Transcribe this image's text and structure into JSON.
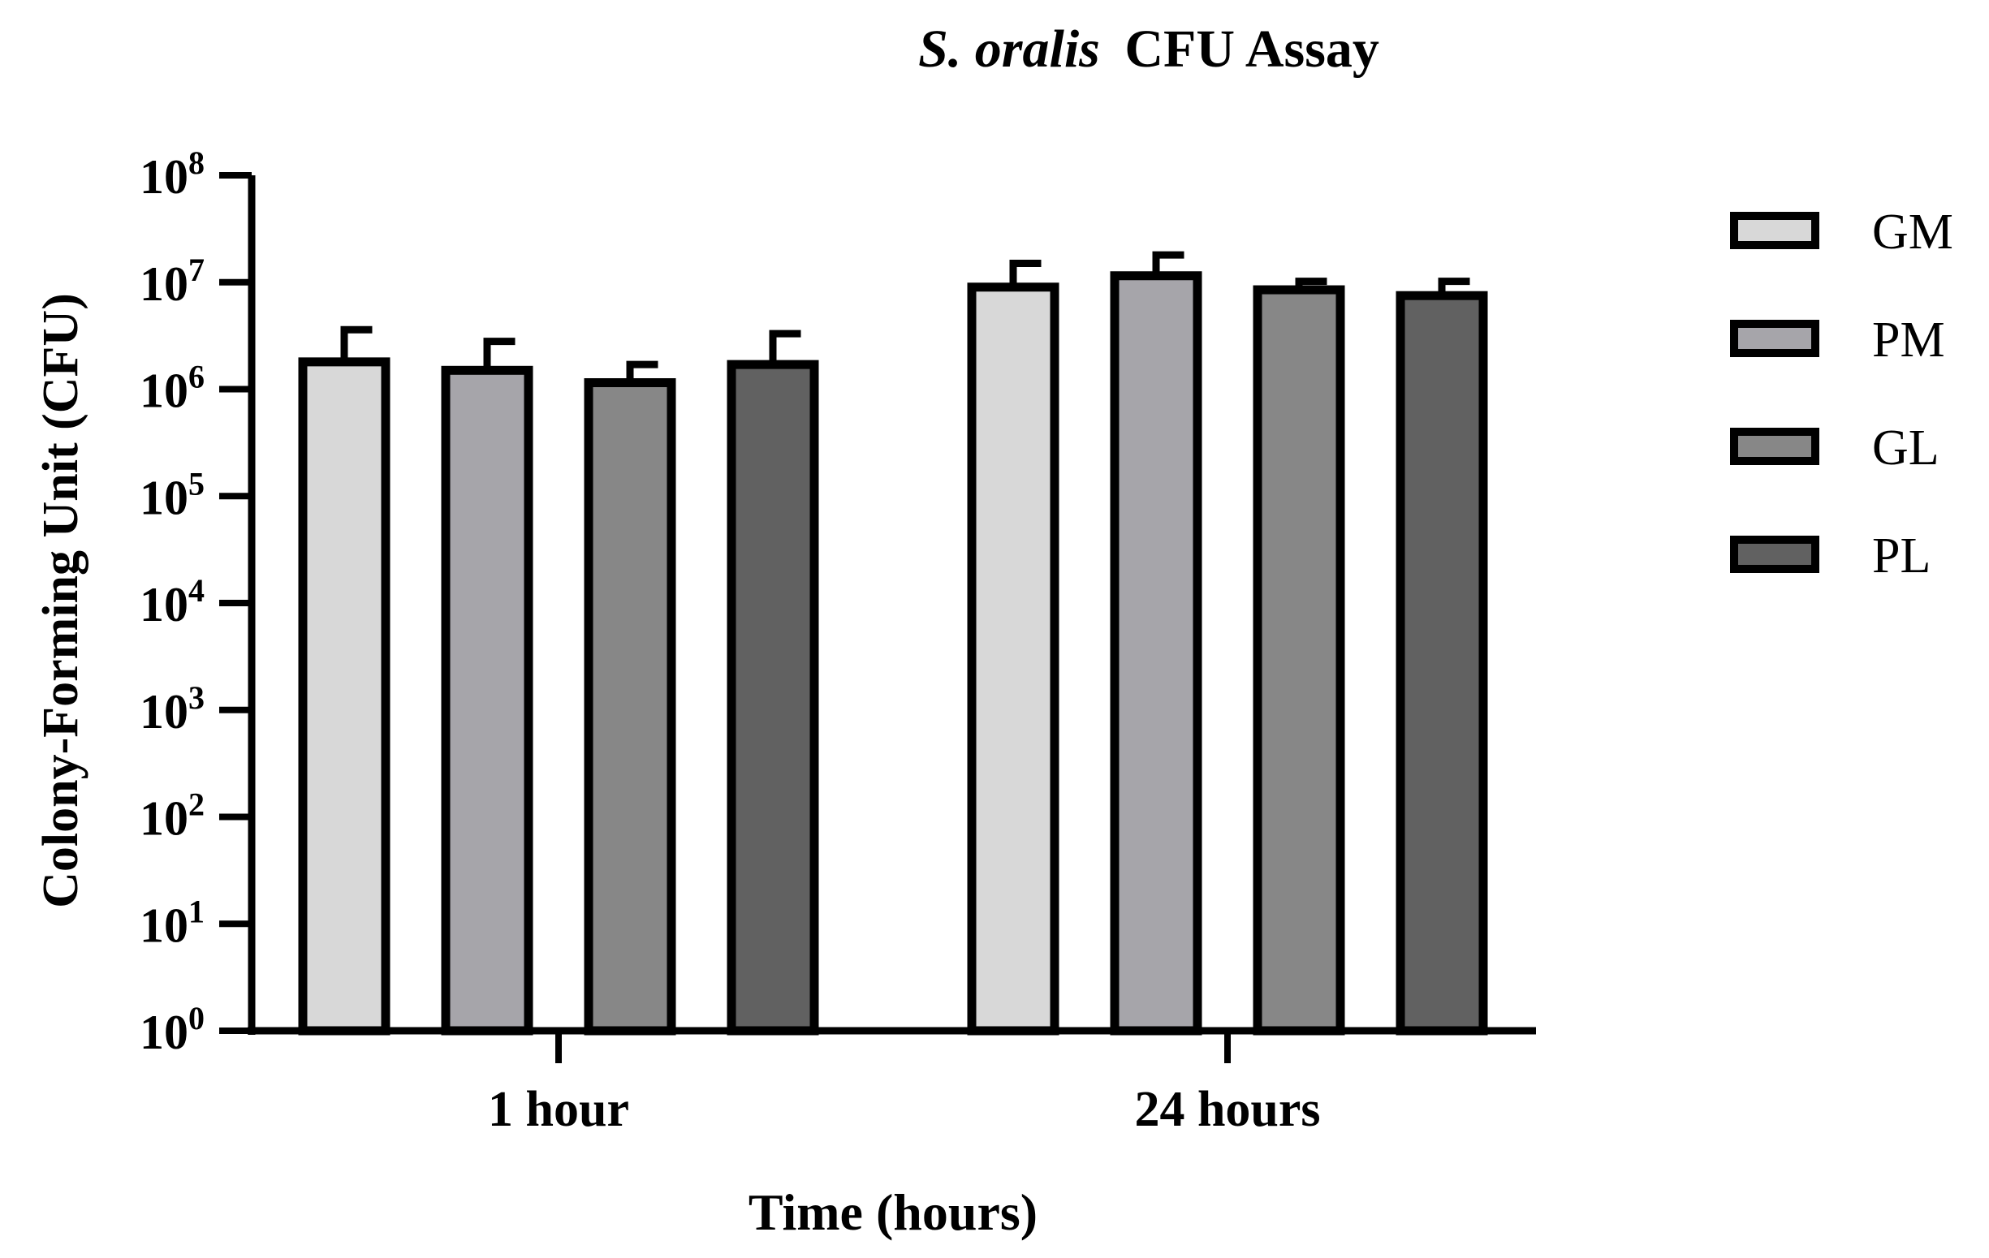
{
  "chart_data": {
    "type": "bar",
    "title_italic": "S. oralis",
    "title_rest": "CFU   Assay",
    "xlabel": "Time (hours)",
    "ylabel": "Colony-Forming Unit (CFU)",
    "y_scale": "log10",
    "ylim": [
      1,
      100000000
    ],
    "y_ticks": [
      {
        "base": "10",
        "exp": "0",
        "value": 1
      },
      {
        "base": "10",
        "exp": "1",
        "value": 10
      },
      {
        "base": "10",
        "exp": "2",
        "value": 100
      },
      {
        "base": "10",
        "exp": "3",
        "value": 1000
      },
      {
        "base": "10",
        "exp": "4",
        "value": 10000
      },
      {
        "base": "10",
        "exp": "5",
        "value": 100000
      },
      {
        "base": "10",
        "exp": "6",
        "value": 1000000
      },
      {
        "base": "10",
        "exp": "7",
        "value": 10000000
      },
      {
        "base": "10",
        "exp": "8",
        "value": 100000000
      }
    ],
    "categories": [
      "1 hour",
      "24 hours"
    ],
    "legend_position": "right",
    "series": [
      {
        "name": "GM",
        "color": "#d8d8d8",
        "values": [
          1800000,
          9000000
        ],
        "error_upper": [
          3600000,
          15000000
        ]
      },
      {
        "name": "PM",
        "color": "#a6a5aa",
        "values": [
          1500000,
          11500000
        ],
        "error_upper": [
          2800000,
          18000000
        ]
      },
      {
        "name": "GL",
        "color": "#878787",
        "values": [
          1150000,
          8500000
        ],
        "error_upper": [
          1700000,
          10200000
        ]
      },
      {
        "name": "PL",
        "color": "#616161",
        "values": [
          1700000,
          7500000
        ],
        "error_upper": [
          3300000,
          10200000
        ]
      }
    ]
  }
}
